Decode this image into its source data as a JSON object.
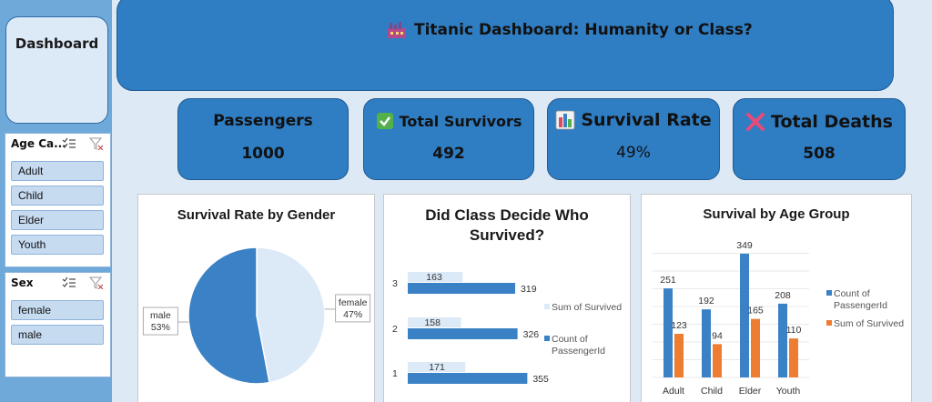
{
  "sidebar": {
    "dashboard_label": "Dashboard",
    "age_slicer": {
      "title": "Age Ca...",
      "items": [
        "Adult",
        "Child",
        "Elder",
        "Youth"
      ]
    },
    "sex_slicer": {
      "title": "Sex",
      "items": [
        "female",
        "male"
      ]
    }
  },
  "header": {
    "title": "Titanic Dashboard: Humanity or Class?",
    "icon": "factory-icon"
  },
  "kpis": [
    {
      "label": "Passengers",
      "value": "1000",
      "icon": ""
    },
    {
      "label": "Total Survivors",
      "value": "492",
      "icon": "check-mark-icon"
    },
    {
      "label": "Survival Rate",
      "value": "49%",
      "icon": "bar-chart-icon"
    },
    {
      "label": "Total Deaths",
      "value": "508",
      "icon": "cross-mark-icon"
    }
  ],
  "colors": {
    "accent": "#2f7dc2",
    "series_blue": "#3a81c5",
    "series_orange": "#ee7d31",
    "series_light": "#dce9f7"
  },
  "chart_data": [
    {
      "type": "pie",
      "title": "Survival Rate by Gender",
      "slices": [
        {
          "category": "female",
          "value": 47,
          "label": "47%"
        },
        {
          "category": "male",
          "value": 53,
          "label": "53%"
        }
      ]
    },
    {
      "type": "bar",
      "orientation": "horizontal",
      "title": "Did Class Decide Who Survived?",
      "categories": [
        "1",
        "2",
        "3"
      ],
      "series": [
        {
          "name": "Sum of Survived",
          "values": [
            171,
            158,
            163
          ]
        },
        {
          "name": "Count of PassengerId",
          "values": [
            355,
            326,
            319
          ]
        }
      ],
      "legend": "right"
    },
    {
      "type": "bar",
      "title": "Survival by Age Group",
      "categories": [
        "Adult",
        "Child",
        "Elder",
        "Youth"
      ],
      "series": [
        {
          "name": "Count of PassengerId",
          "values": [
            251,
            192,
            349,
            208
          ]
        },
        {
          "name": "Sum of Survived",
          "values": [
            123,
            94,
            165,
            110
          ]
        }
      ],
      "legend": "right",
      "grid": true
    }
  ]
}
